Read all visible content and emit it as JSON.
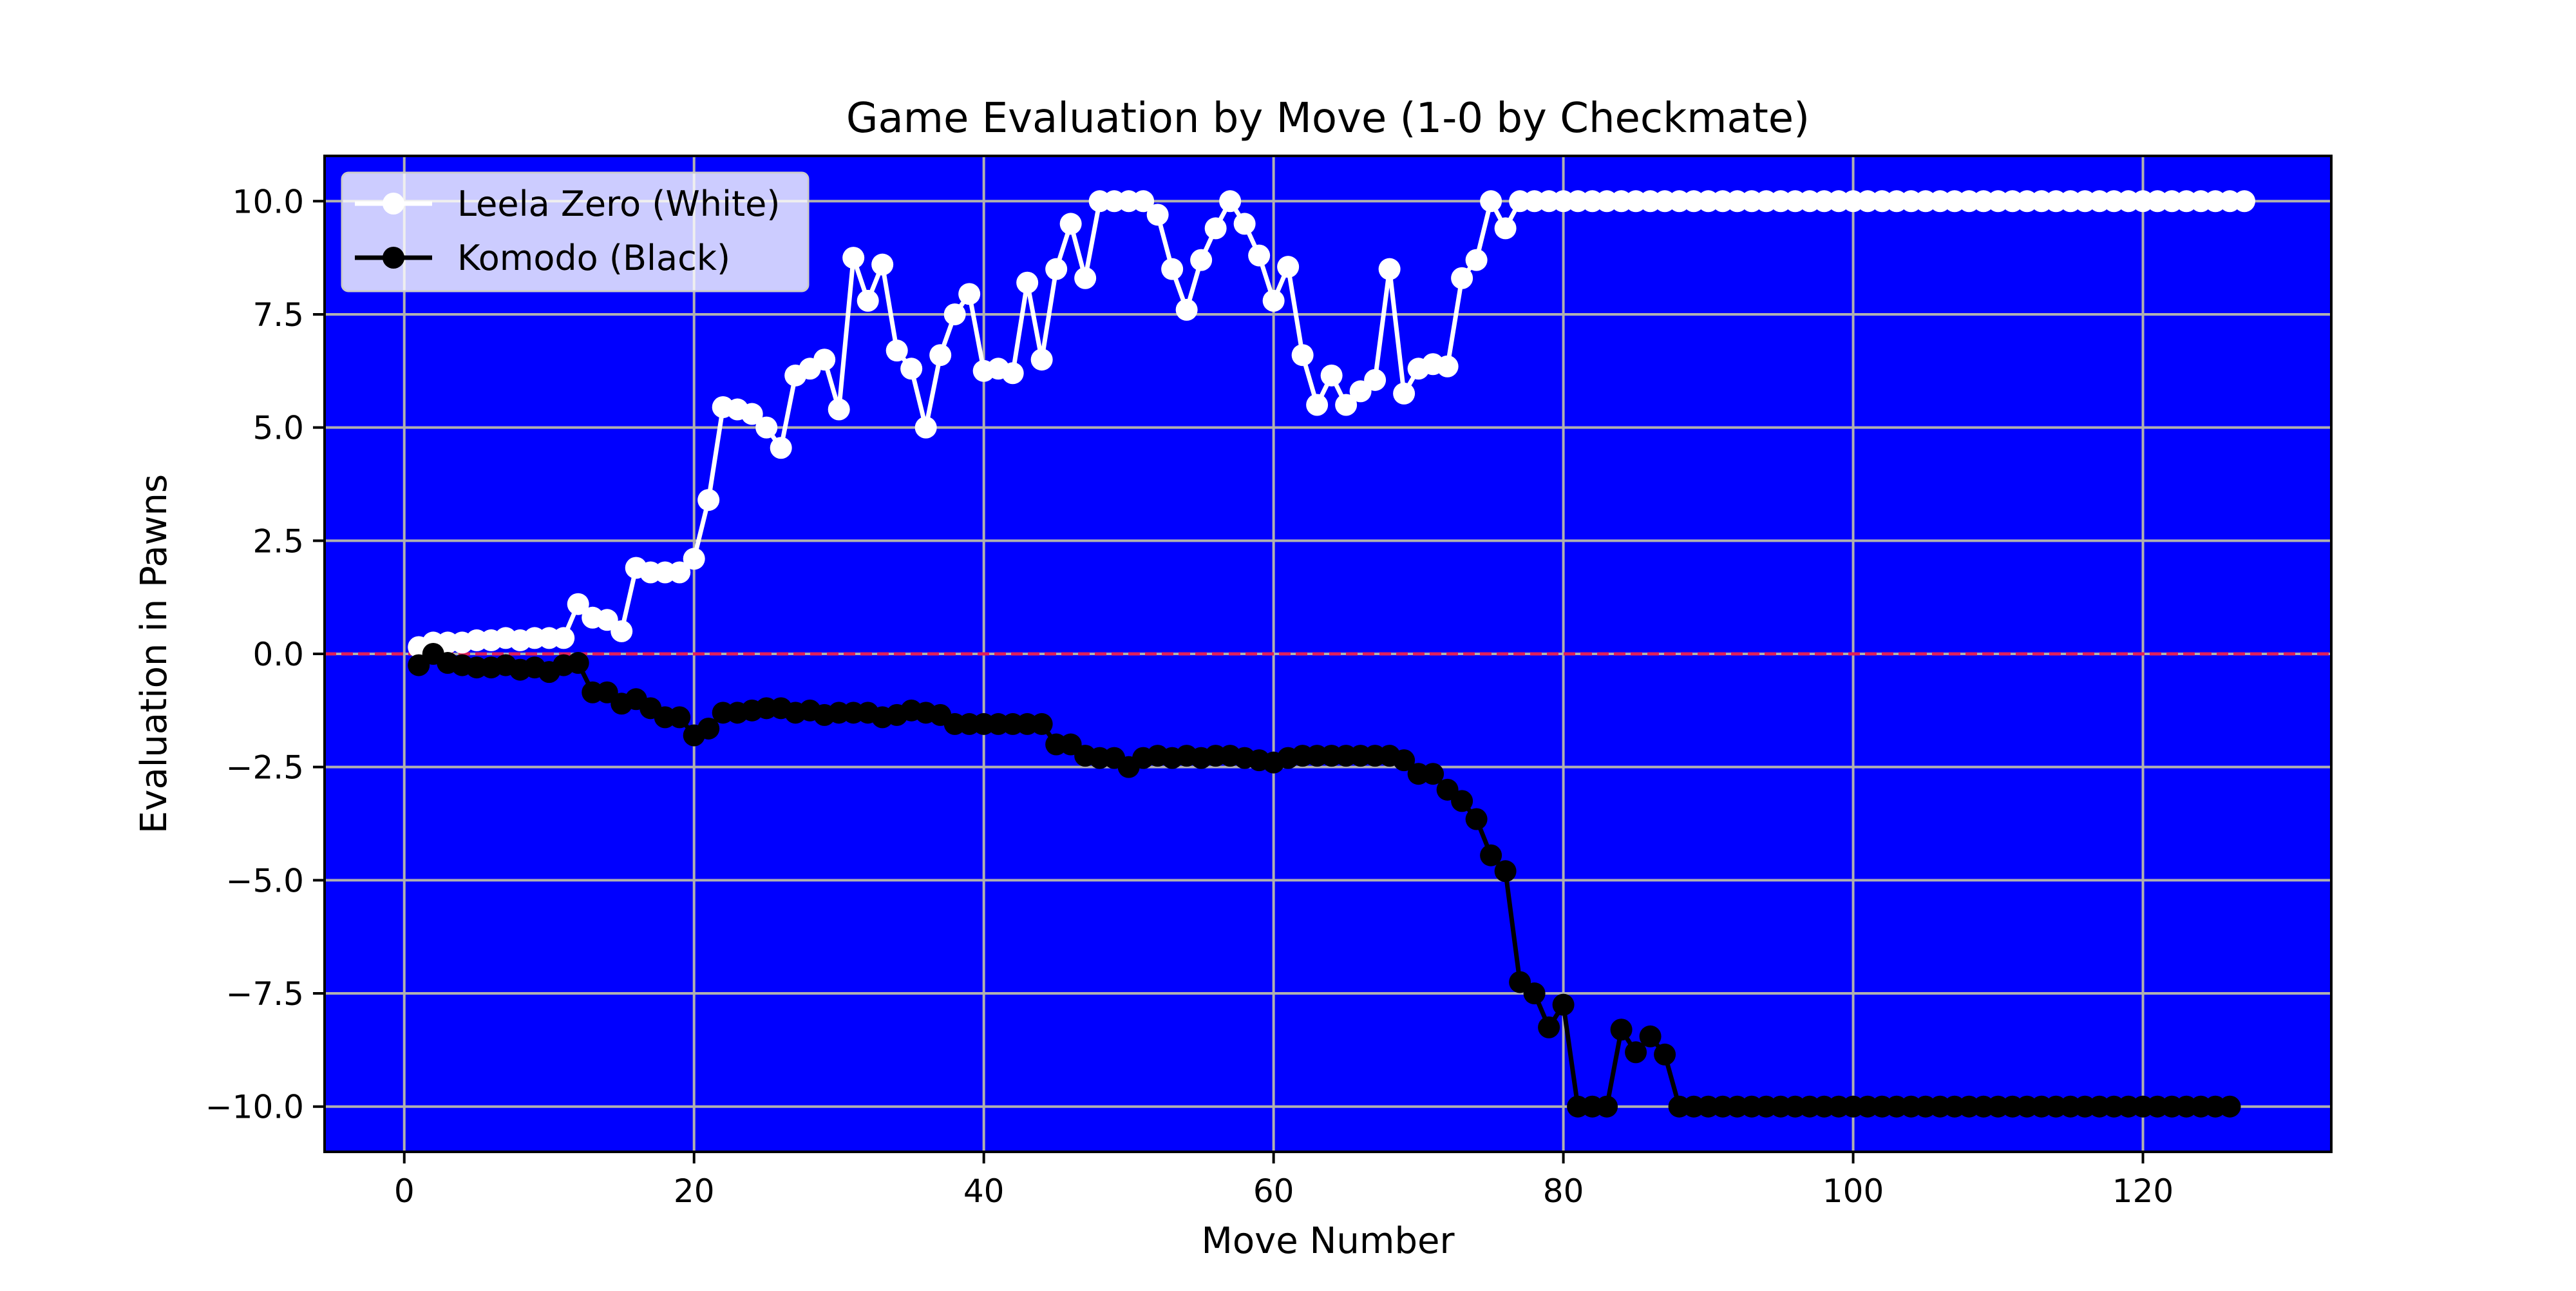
{
  "chart_data": {
    "type": "line",
    "title": "Game Evaluation by Move (1-0 by Checkmate)",
    "xlabel": "Move Number",
    "ylabel": "Evaluation in Pawns",
    "xlim": [
      -5.5,
      133
    ],
    "ylim": [
      -11,
      11
    ],
    "x_ticks": [
      0,
      20,
      40,
      60,
      80,
      100,
      120
    ],
    "x_tick_labels": [
      "0",
      "20",
      "40",
      "60",
      "80",
      "100",
      "120"
    ],
    "y_ticks": [
      10.0,
      7.5,
      5.0,
      2.5,
      0.0,
      -2.5,
      -5.0,
      -7.5,
      -10.0
    ],
    "y_tick_labels": [
      "10.0",
      "7.5",
      "5.0",
      "2.5",
      "0.0",
      "−2.5",
      "−5.0",
      "−7.5",
      "−10.0"
    ],
    "grid": true,
    "legend_position": "top-left",
    "plot_background": "#0000ff",
    "reference_line": {
      "y": 0,
      "style": "dashed",
      "color": "#e0205a"
    },
    "series": [
      {
        "name": "Leela Zero (White)",
        "color": "#ffffff",
        "marker": "circle",
        "x": [
          1,
          2,
          3,
          4,
          5,
          6,
          7,
          8,
          9,
          10,
          11,
          12,
          13,
          14,
          15,
          16,
          17,
          18,
          19,
          20,
          21,
          22,
          23,
          24,
          25,
          26,
          27,
          28,
          29,
          30,
          31,
          32,
          33,
          34,
          35,
          36,
          37,
          38,
          39,
          40,
          41,
          42,
          43,
          44,
          45,
          46,
          47,
          48,
          49,
          50,
          51,
          52,
          53,
          54,
          55,
          56,
          57,
          58,
          59,
          60,
          61,
          62,
          63,
          64,
          65,
          66,
          67,
          68,
          69,
          70,
          71,
          72,
          73,
          74,
          75,
          76,
          77,
          78,
          79,
          80,
          81,
          82,
          83,
          84,
          85,
          86,
          87,
          88,
          89,
          90,
          91,
          92,
          93,
          94,
          95,
          96,
          97,
          98,
          99,
          100,
          101,
          102,
          103,
          104,
          105,
          106,
          107,
          108,
          109,
          110,
          111,
          112,
          113,
          114,
          115,
          116,
          117,
          118,
          119,
          120,
          121,
          122,
          123,
          124,
          125,
          126,
          127
        ],
        "values": [
          0.15,
          0.25,
          0.25,
          0.25,
          0.3,
          0.3,
          0.35,
          0.3,
          0.35,
          0.35,
          0.35,
          1.1,
          0.8,
          0.75,
          0.5,
          1.9,
          1.8,
          1.8,
          1.8,
          2.1,
          3.4,
          5.45,
          5.4,
          5.3,
          5.0,
          4.55,
          6.15,
          6.3,
          6.5,
          5.4,
          8.75,
          7.8,
          8.6,
          6.7,
          6.3,
          5.0,
          6.6,
          7.5,
          7.95,
          6.25,
          6.3,
          6.2,
          8.2,
          6.5,
          8.5,
          9.5,
          8.3,
          10,
          10,
          10,
          10,
          9.7,
          8.5,
          7.6,
          8.7,
          9.4,
          10,
          9.5,
          8.8,
          7.8,
          8.55,
          6.6,
          5.5,
          6.15,
          5.5,
          5.8,
          6.05,
          8.5,
          5.75,
          6.3,
          6.4,
          6.35,
          8.3,
          8.7,
          10,
          9.4,
          10,
          10,
          10,
          10,
          10,
          10,
          10,
          10,
          10,
          10,
          10,
          10,
          10,
          10,
          10,
          10,
          10,
          10,
          10,
          10,
          10,
          10,
          10,
          10,
          10,
          10,
          10,
          10,
          10,
          10,
          10,
          10,
          10,
          10,
          10,
          10,
          10,
          10,
          10,
          10,
          10,
          10,
          10,
          10,
          10,
          10,
          10,
          10,
          10,
          10,
          10
        ]
      },
      {
        "name": "Komodo (Black)",
        "color": "#000000",
        "marker": "circle",
        "x": [
          1,
          2,
          3,
          4,
          5,
          6,
          7,
          8,
          9,
          10,
          11,
          12,
          13,
          14,
          15,
          16,
          17,
          18,
          19,
          20,
          21,
          22,
          23,
          24,
          25,
          26,
          27,
          28,
          29,
          30,
          31,
          32,
          33,
          34,
          35,
          36,
          37,
          38,
          39,
          40,
          41,
          42,
          43,
          44,
          45,
          46,
          47,
          48,
          49,
          50,
          51,
          52,
          53,
          54,
          55,
          56,
          57,
          58,
          59,
          60,
          61,
          62,
          63,
          64,
          65,
          66,
          67,
          68,
          69,
          70,
          71,
          72,
          73,
          74,
          75,
          76,
          77,
          78,
          79,
          80,
          81,
          82,
          83,
          84,
          85,
          86,
          87,
          88,
          89,
          90,
          91,
          92,
          93,
          94,
          95,
          96,
          97,
          98,
          99,
          100,
          101,
          102,
          103,
          104,
          105,
          106,
          107,
          108,
          109,
          110,
          111,
          112,
          113,
          114,
          115,
          116,
          117,
          118,
          119,
          120,
          121,
          122,
          123,
          124,
          125,
          126
        ],
        "values": [
          -0.25,
          0.0,
          -0.2,
          -0.25,
          -0.3,
          -0.3,
          -0.25,
          -0.35,
          -0.3,
          -0.4,
          -0.25,
          -0.2,
          -0.85,
          -0.85,
          -1.1,
          -1.0,
          -1.2,
          -1.4,
          -1.4,
          -1.8,
          -1.65,
          -1.3,
          -1.3,
          -1.25,
          -1.2,
          -1.2,
          -1.3,
          -1.25,
          -1.35,
          -1.3,
          -1.3,
          -1.3,
          -1.4,
          -1.35,
          -1.25,
          -1.3,
          -1.35,
          -1.55,
          -1.55,
          -1.55,
          -1.55,
          -1.55,
          -1.55,
          -1.55,
          -2.0,
          -2.0,
          -2.25,
          -2.3,
          -2.3,
          -2.5,
          -2.3,
          -2.25,
          -2.3,
          -2.25,
          -2.3,
          -2.25,
          -2.25,
          -2.3,
          -2.35,
          -2.4,
          -2.3,
          -2.25,
          -2.25,
          -2.25,
          -2.25,
          -2.25,
          -2.25,
          -2.25,
          -2.35,
          -2.65,
          -2.65,
          -3.0,
          -3.25,
          -3.65,
          -4.45,
          -4.8,
          -7.25,
          -7.5,
          -8.25,
          -7.75,
          -10,
          -10,
          -10,
          -8.3,
          -8.8,
          -8.45,
          -8.85,
          -10,
          -10,
          -10,
          -10,
          -10,
          -10,
          -10,
          -10,
          -10,
          -10,
          -10,
          -10,
          -10,
          -10,
          -10,
          -10,
          -10,
          -10,
          -10,
          -10,
          -10,
          -10,
          -10,
          -10,
          -10,
          -10,
          -10,
          -10,
          -10,
          -10,
          -10,
          -10,
          -10,
          -10,
          -10,
          -10,
          -10,
          -10,
          -10
        ]
      }
    ]
  }
}
